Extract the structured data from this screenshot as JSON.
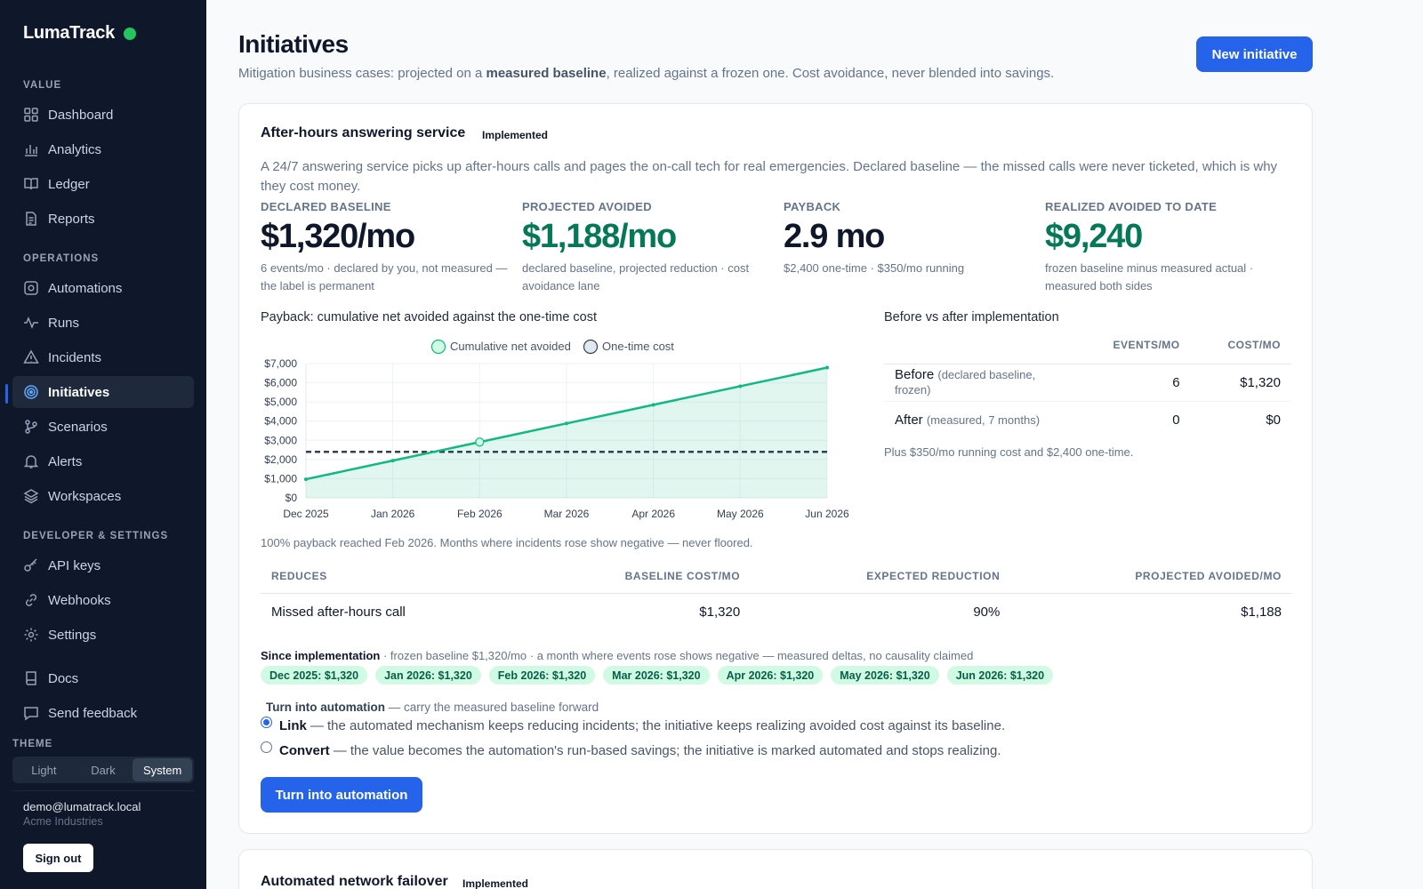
{
  "brand": {
    "name": "LumaTrack"
  },
  "sidebar": {
    "sections": [
      {
        "title": "VALUE",
        "items": [
          {
            "label": "Dashboard",
            "icon": "grid-icon"
          },
          {
            "label": "Analytics",
            "icon": "bar-chart-icon"
          },
          {
            "label": "Ledger",
            "icon": "book-icon"
          },
          {
            "label": "Reports",
            "icon": "document-icon"
          }
        ]
      },
      {
        "title": "OPERATIONS",
        "items": [
          {
            "label": "Automations",
            "icon": "cog-box-icon"
          },
          {
            "label": "Runs",
            "icon": "activity-icon"
          },
          {
            "label": "Incidents",
            "icon": "warning-icon"
          },
          {
            "label": "Initiatives",
            "icon": "target-icon",
            "active": true
          },
          {
            "label": "Scenarios",
            "icon": "branch-icon"
          },
          {
            "label": "Alerts",
            "icon": "bell-icon"
          },
          {
            "label": "Workspaces",
            "icon": "layers-icon"
          }
        ]
      },
      {
        "title": "DEVELOPER & SETTINGS",
        "items": [
          {
            "label": "API keys",
            "icon": "key-icon"
          },
          {
            "label": "Webhooks",
            "icon": "link-icon"
          },
          {
            "label": "Settings",
            "icon": "gear-icon"
          }
        ]
      },
      {
        "title": "",
        "items": [
          {
            "label": "Docs",
            "icon": "docs-icon"
          },
          {
            "label": "Send feedback",
            "icon": "chat-icon"
          }
        ]
      }
    ],
    "theme": {
      "label": "THEME",
      "options": [
        "Light",
        "Dark",
        "System"
      ],
      "selected": "System"
    },
    "user": {
      "email": "demo@lumatrack.local",
      "org": "Acme Industries",
      "signout": "Sign out"
    }
  },
  "header": {
    "title": "Initiatives",
    "subtitle_pre": "Mitigation business cases: projected on a ",
    "subtitle_bold": "measured baseline",
    "subtitle_post": ", realized against a frozen one. Cost avoidance, never blended into savings.",
    "new_button": "New initiative"
  },
  "initiative": {
    "title": "After-hours answering service",
    "status": "Implemented",
    "description": "A 24/7 answering service picks up after-hours calls and pages the on-call tech for real emergencies. Declared baseline — the missed calls were never ticketed, which is why they cost money.",
    "stats": [
      {
        "label": "DECLARED BASELINE",
        "value": "$1,320/mo",
        "tone": "dark",
        "note": "6 events/mo · declared by you, not measured — the label is permanent"
      },
      {
        "label": "PROJECTED AVOIDED",
        "value": "$1,188/mo",
        "tone": "green",
        "note": "declared baseline, projected reduction · cost avoidance lane"
      },
      {
        "label": "PAYBACK",
        "value": "2.9 mo",
        "tone": "dark",
        "note": "$2,400 one-time · $350/mo running"
      },
      {
        "label": "REALIZED AVOIDED TO DATE",
        "value": "$9,240",
        "tone": "green",
        "note": "frozen baseline minus measured actual · measured both sides"
      }
    ],
    "chart_title": "Payback: cumulative net avoided against the one-time cost",
    "chart_foot": "100% payback reached Feb 2026. Months where incidents rose show negative — never floored.",
    "before_after": {
      "title": "Before vs after implementation",
      "headers": [
        "EVENTS/MO",
        "COST/MO"
      ],
      "rows": [
        {
          "label": "Before",
          "sub": "(declared baseline, frozen)",
          "events": "6",
          "cost": "$1,320"
        },
        {
          "label": "After",
          "sub": "(measured, 7 months)",
          "events": "0",
          "cost": "$0"
        }
      ],
      "note": "Plus $350/mo running cost and $2,400 one-time."
    },
    "reduces": {
      "headers": [
        "REDUCES",
        "BASELINE COST/MO",
        "EXPECTED REDUCTION",
        "PROJECTED AVOIDED/MO"
      ],
      "rows": [
        [
          "Missed after-hours call",
          "$1,320",
          "90%",
          "$1,188"
        ]
      ]
    },
    "since": {
      "label": "Since implementation",
      "text": " · frozen baseline $1,320/mo · a month where events rose shows negative — measured deltas, no causality claimed",
      "chips": [
        "Dec 2025: $1,320",
        "Jan 2026: $1,320",
        "Feb 2026: $1,320",
        "Mar 2026: $1,320",
        "Apr 2026: $1,320",
        "May 2026: $1,320",
        "Jun 2026: $1,320"
      ]
    },
    "automation": {
      "title_bold": "Turn into automation",
      "title_rest": " — carry the measured baseline forward",
      "options": [
        {
          "name": "Link",
          "text": "— the automated mechanism keeps reducing incidents; the initiative keeps realizing avoided cost against its baseline.",
          "checked": true
        },
        {
          "name": "Convert",
          "text": "— the value becomes the automation's run-based savings; the initiative is marked automated and stops realizing.",
          "checked": false
        }
      ],
      "button": "Turn into automation"
    }
  },
  "second_initiative": {
    "title": "Automated network failover",
    "status": "Implemented"
  },
  "chart_data": {
    "type": "line",
    "x": [
      "Dec 2025",
      "Jan 2026",
      "Feb 2026",
      "Mar 2026",
      "Apr 2026",
      "May 2026",
      "Jun 2026"
    ],
    "series": [
      {
        "name": "Cumulative net avoided",
        "values": [
          970,
          1940,
          2910,
          3880,
          4850,
          5820,
          6790
        ],
        "color": "#10b981"
      },
      {
        "name": "One-time cost",
        "values": [
          2400,
          2400,
          2400,
          2400,
          2400,
          2400,
          2400
        ],
        "color": "#334155"
      }
    ],
    "payback_month": "Feb 2026",
    "ylim": [
      0,
      7000
    ],
    "yticks": [
      "$0",
      "$1,000",
      "$2,000",
      "$3,000",
      "$4,000",
      "$5,000",
      "$6,000",
      "$7,000"
    ],
    "ytick_values": [
      0,
      1000,
      2000,
      3000,
      4000,
      5000,
      6000,
      7000
    ],
    "legend_position": "top-center",
    "grid": true
  }
}
